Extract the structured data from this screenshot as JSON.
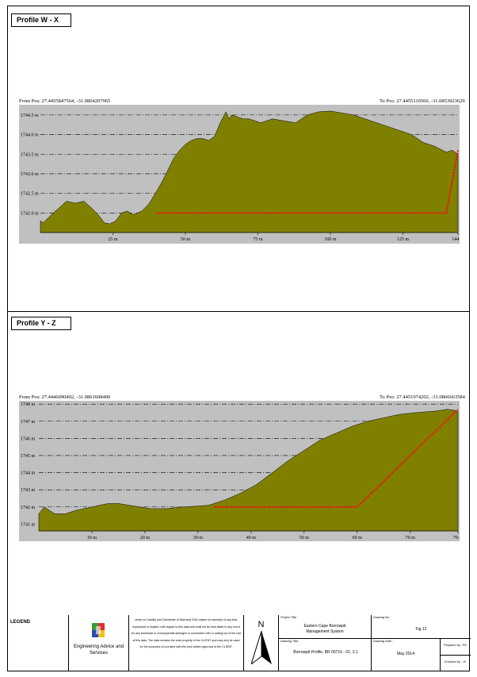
{
  "profiles": [
    {
      "title": "Profile W - X",
      "from_pos": "From Pos: 27.4455847564, -31.0864207965",
      "to_pos": "To Pos: 27.4455110560, -31.0853923629",
      "chart_data": {
        "type": "area",
        "title": "",
        "xlabel": "",
        "ylabel": "",
        "x_ticks": [
          "25 m",
          "50 m",
          "75 m",
          "100 m",
          "125 m",
          "144 m"
        ],
        "x_tick_values": [
          25,
          50,
          75,
          100,
          125,
          144
        ],
        "y_ticks": [
          "1742.0 m",
          "1742.5 m",
          "1743.0 m",
          "1743.5 m",
          "1744.0 m",
          "1744.5 m"
        ],
        "y_tick_values": [
          1742.0,
          1742.5,
          1743.0,
          1743.5,
          1744.0,
          1744.5
        ],
        "xlim": [
          0,
          144
        ],
        "ylim": [
          1741.5,
          1744.7
        ],
        "grid": "horizontal dash-dot",
        "series": [
          {
            "kind": "ground",
            "color": "#808000",
            "x": [
              0,
              1,
              3,
              6,
              9,
              12,
              15,
              18,
              20,
              22,
              24,
              26,
              28,
              30,
              32,
              35,
              37,
              38,
              40,
              42,
              44,
              46,
              48,
              50,
              52,
              54,
              56,
              58,
              60,
              62,
              64,
              65,
              66,
              68,
              70,
              72,
              74,
              76,
              78,
              80,
              84,
              88,
              92,
              96,
              100,
              104,
              108,
              112,
              116,
              120,
              124,
              128,
              132,
              136,
              140,
              142,
              144
            ],
            "y": [
              1741.8,
              1741.75,
              1741.9,
              1742.1,
              1742.3,
              1742.25,
              1742.3,
              1742.1,
              1741.95,
              1741.75,
              1741.72,
              1741.8,
              1742.0,
              1742.05,
              1741.95,
              1742.05,
              1742.2,
              1742.3,
              1742.55,
              1742.8,
              1743.1,
              1743.4,
              1743.6,
              1743.75,
              1743.85,
              1743.9,
              1743.9,
              1743.85,
              1743.95,
              1744.3,
              1744.58,
              1744.4,
              1744.5,
              1744.45,
              1744.4,
              1744.4,
              1744.35,
              1744.3,
              1744.35,
              1744.4,
              1744.35,
              1744.3,
              1744.5,
              1744.58,
              1744.6,
              1744.55,
              1744.5,
              1744.4,
              1744.3,
              1744.2,
              1744.1,
              1744.0,
              1743.8,
              1743.7,
              1743.55,
              1743.6,
              1743.5
            ]
          },
          {
            "kind": "design",
            "color": "#ff0000",
            "x": [
              40,
              57,
              140,
              144
            ],
            "y": [
              1742.0,
              1742.0,
              1742.0,
              1743.6
            ]
          }
        ]
      }
    },
    {
      "title": "Profile Y - Z",
      "from_pos": "From Pos: 27.4446090492, -31.0861608490",
      "to_pos": "To Pos: 27.4451974202, -31.0866663584",
      "chart_data": {
        "type": "area",
        "title": "",
        "xlabel": "",
        "ylabel": "",
        "x_ticks": [
          "10 m",
          "20 m",
          "30 m",
          "40 m",
          "50 m",
          "60 m",
          "70 m",
          "79 m"
        ],
        "x_tick_values": [
          10,
          20,
          30,
          40,
          50,
          60,
          70,
          79
        ],
        "y_ticks": [
          "1741 m",
          "1742 m",
          "1743 m",
          "1744 m",
          "1745 m",
          "1746 m",
          "1747 m",
          "1748 m"
        ],
        "y_tick_values": [
          1741,
          1742,
          1743,
          1744,
          1745,
          1746,
          1747,
          1748
        ],
        "xlim": [
          0,
          79
        ],
        "ylim": [
          1740.6,
          1748.1
        ],
        "grid": "horizontal dash-dot",
        "series": [
          {
            "kind": "ground",
            "color": "#808000",
            "x": [
              0,
              1,
              2,
              3,
              5,
              7,
              10,
              13,
              15,
              17,
              19,
              21,
              24,
              27,
              30,
              32,
              35,
              38,
              41,
              44,
              47,
              50,
              53,
              56,
              59,
              62,
              65,
              68,
              71,
              73,
              75,
              77,
              79
            ],
            "y": [
              1741.6,
              1742.0,
              1741.8,
              1741.6,
              1741.6,
              1741.8,
              1742.0,
              1742.2,
              1742.2,
              1742.1,
              1742.0,
              1741.9,
              1741.9,
              1742.0,
              1742.05,
              1742.1,
              1742.4,
              1742.8,
              1743.3,
              1744.0,
              1744.7,
              1745.3,
              1745.9,
              1746.3,
              1746.7,
              1747.0,
              1747.2,
              1747.4,
              1747.5,
              1747.55,
              1747.6,
              1747.7,
              1747.6
            ]
          },
          {
            "kind": "design",
            "color": "#ff0000",
            "x": [
              33,
              60,
              79
            ],
            "y": [
              1742.0,
              1742.0,
              1747.7
            ]
          }
        ]
      }
    }
  ],
  "footer": {
    "legend_title": "LEGEND",
    "company": "Engineering Advice and Services",
    "disclaimer": "Limits on Liability and Disclaimer of Warranty EAS makes no warranty of any kind, expressed or implied, with regard to this data and shall not be held liable in any event for any incidental or consequential damages in connection with or arising out of the use of this data. The data remains the sole property of the CLIENT and may only be used for the purposes of a project with the prior written approval of the CLIENT.",
    "north": "N",
    "project_title_label": "Project Title :",
    "project_title": "Eastern Cape Borrowpit Management System",
    "drawing_title_label": "Drawing Title :",
    "drawing_title": "Borrowpit Profile, BR 00716 - 01, 3.1",
    "drawing_no_label": "Drawing No :",
    "drawing_no": "Fig 12",
    "drawing_date_label": "Drawing Date :",
    "drawing_date": "May 2014",
    "prepared_by": "Prepared by : SS",
    "checked_by": "Checked by : JV"
  }
}
